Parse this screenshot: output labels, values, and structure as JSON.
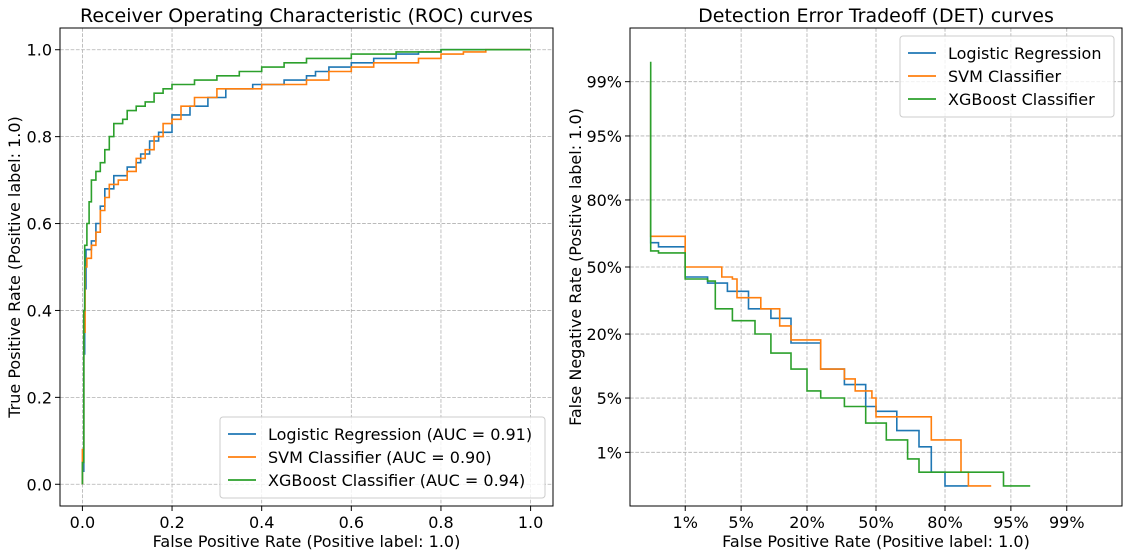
{
  "chart_data": [
    {
      "type": "line",
      "title": "Receiver Operating Characteristic (ROC) curves",
      "xlabel": "False Positive Rate (Positive label: 1.0)",
      "ylabel": "True Positive Rate (Positive label: 1.0)",
      "xlim": [
        -0.05,
        1.05
      ],
      "ylim": [
        -0.05,
        1.05
      ],
      "xticks": [
        0.0,
        0.2,
        0.4,
        0.6,
        0.8,
        1.0
      ],
      "yticks": [
        0.0,
        0.2,
        0.4,
        0.6,
        0.8,
        1.0
      ],
      "xtick_labels": [
        "0.0",
        "0.2",
        "0.4",
        "0.6",
        "0.8",
        "1.0"
      ],
      "ytick_labels": [
        "0.0",
        "0.2",
        "0.4",
        "0.6",
        "0.8",
        "1.0"
      ],
      "grid": true,
      "legend_position": "lower-right",
      "series": [
        {
          "name": "Logistic Regression (AUC = 0.91)",
          "color": "#1f77b4",
          "points": [
            [
              0,
              0
            ],
            [
              0,
              0.03
            ],
            [
              0.003,
              0.3
            ],
            [
              0.005,
              0.45
            ],
            [
              0.008,
              0.54
            ],
            [
              0.02,
              0.56
            ],
            [
              0.03,
              0.6
            ],
            [
              0.04,
              0.64
            ],
            [
              0.05,
              0.68
            ],
            [
              0.07,
              0.71
            ],
            [
              0.1,
              0.73
            ],
            [
              0.12,
              0.74
            ],
            [
              0.13,
              0.76
            ],
            [
              0.15,
              0.79
            ],
            [
              0.17,
              0.81
            ],
            [
              0.2,
              0.85
            ],
            [
              0.24,
              0.87
            ],
            [
              0.28,
              0.89
            ],
            [
              0.32,
              0.91
            ],
            [
              0.38,
              0.92
            ],
            [
              0.4,
              0.92
            ],
            [
              0.45,
              0.93
            ],
            [
              0.5,
              0.94
            ],
            [
              0.52,
              0.95
            ],
            [
              0.55,
              0.96
            ],
            [
              0.6,
              0.97
            ],
            [
              0.65,
              0.98
            ],
            [
              0.7,
              0.99
            ],
            [
              0.75,
              0.995
            ],
            [
              0.8,
              1.0
            ],
            [
              1.0,
              1.0
            ]
          ]
        },
        {
          "name": "SVM Classifier (AUC = 0.90)",
          "color": "#ff7f0e",
          "points": [
            [
              0,
              0
            ],
            [
              0,
              0.08
            ],
            [
              0.003,
              0.35
            ],
            [
              0.006,
              0.5
            ],
            [
              0.01,
              0.52
            ],
            [
              0.02,
              0.55
            ],
            [
              0.03,
              0.58
            ],
            [
              0.04,
              0.63
            ],
            [
              0.05,
              0.66
            ],
            [
              0.06,
              0.69
            ],
            [
              0.08,
              0.7
            ],
            [
              0.1,
              0.72
            ],
            [
              0.12,
              0.75
            ],
            [
              0.14,
              0.77
            ],
            [
              0.16,
              0.8
            ],
            [
              0.18,
              0.83
            ],
            [
              0.2,
              0.84
            ],
            [
              0.22,
              0.87
            ],
            [
              0.25,
              0.89
            ],
            [
              0.3,
              0.91
            ],
            [
              0.35,
              0.91
            ],
            [
              0.4,
              0.92
            ],
            [
              0.45,
              0.92
            ],
            [
              0.5,
              0.93
            ],
            [
              0.55,
              0.95
            ],
            [
              0.6,
              0.96
            ],
            [
              0.65,
              0.97
            ],
            [
              0.7,
              0.97
            ],
            [
              0.75,
              0.98
            ],
            [
              0.8,
              0.99
            ],
            [
              0.85,
              0.995
            ],
            [
              0.9,
              1.0
            ],
            [
              1.0,
              1.0
            ]
          ]
        },
        {
          "name": "XGBoost Classifier (AUC = 0.94)",
          "color": "#2ca02c",
          "points": [
            [
              0,
              0
            ],
            [
              0,
              0.05
            ],
            [
              0.003,
              0.4
            ],
            [
              0.005,
              0.55
            ],
            [
              0.01,
              0.6
            ],
            [
              0.015,
              0.65
            ],
            [
              0.02,
              0.7
            ],
            [
              0.03,
              0.72
            ],
            [
              0.04,
              0.74
            ],
            [
              0.05,
              0.77
            ],
            [
              0.06,
              0.8
            ],
            [
              0.07,
              0.83
            ],
            [
              0.09,
              0.84
            ],
            [
              0.1,
              0.86
            ],
            [
              0.12,
              0.87
            ],
            [
              0.14,
              0.88
            ],
            [
              0.16,
              0.9
            ],
            [
              0.18,
              0.91
            ],
            [
              0.2,
              0.92
            ],
            [
              0.25,
              0.93
            ],
            [
              0.3,
              0.94
            ],
            [
              0.35,
              0.95
            ],
            [
              0.4,
              0.96
            ],
            [
              0.45,
              0.97
            ],
            [
              0.5,
              0.98
            ],
            [
              0.6,
              0.99
            ],
            [
              0.7,
              0.995
            ],
            [
              0.8,
              1.0
            ],
            [
              1.0,
              1.0
            ]
          ]
        }
      ]
    },
    {
      "type": "line",
      "title": "Detection Error Tradeoff (DET) curves",
      "xlabel": "False Positive Rate (Positive label: 1.0)",
      "ylabel": "False Negative Rate (Positive label: 1.0)",
      "scale": "normal-deviate",
      "xlim": [
        -3,
        3
      ],
      "ylim": [
        -3,
        3
      ],
      "xticks": [
        0.01,
        0.05,
        0.2,
        0.5,
        0.8,
        0.95,
        0.99
      ],
      "yticks": [
        0.01,
        0.05,
        0.2,
        0.5,
        0.8,
        0.95,
        0.99
      ],
      "xtick_labels": [
        "1%",
        "5%",
        "20%",
        "50%",
        "80%",
        "95%",
        "99%"
      ],
      "ytick_labels": [
        "1%",
        "5%",
        "20%",
        "50%",
        "80%",
        "95%",
        "99%"
      ],
      "grid": true,
      "legend_position": "top-right",
      "series": [
        {
          "name": "Logistic Regression",
          "color": "#1f77b4",
          "points": [
            [
              0.003,
              0.99
            ],
            [
              0.003,
              0.62
            ],
            [
              0.004,
              0.6
            ],
            [
              0.01,
              0.58
            ],
            [
              0.01,
              0.45
            ],
            [
              0.02,
              0.42
            ],
            [
              0.035,
              0.38
            ],
            [
              0.06,
              0.3
            ],
            [
              0.1,
              0.26
            ],
            [
              0.15,
              0.17
            ],
            [
              0.25,
              0.1
            ],
            [
              0.35,
              0.07
            ],
            [
              0.45,
              0.04
            ],
            [
              0.5,
              0.035
            ],
            [
              0.6,
              0.02
            ],
            [
              0.7,
              0.012
            ],
            [
              0.75,
              0.005
            ],
            [
              0.8,
              0.003
            ],
            [
              0.87,
              0.003
            ]
          ]
        },
        {
          "name": "SVM Classifier",
          "color": "#ff7f0e",
          "points": [
            [
              0.003,
              0.99
            ],
            [
              0.003,
              0.65
            ],
            [
              0.01,
              0.65
            ],
            [
              0.01,
              0.5
            ],
            [
              0.03,
              0.45
            ],
            [
              0.04,
              0.44
            ],
            [
              0.045,
              0.35
            ],
            [
              0.08,
              0.3
            ],
            [
              0.12,
              0.23
            ],
            [
              0.15,
              0.18
            ],
            [
              0.25,
              0.1
            ],
            [
              0.35,
              0.08
            ],
            [
              0.4,
              0.06
            ],
            [
              0.48,
              0.05
            ],
            [
              0.5,
              0.03
            ],
            [
              0.65,
              0.03
            ],
            [
              0.75,
              0.015
            ],
            [
              0.85,
              0.005
            ],
            [
              0.87,
              0.003
            ],
            [
              0.92,
              0.003
            ]
          ]
        },
        {
          "name": "XGBoost Classifier",
          "color": "#2ca02c",
          "points": [
            [
              0.003,
              0.995
            ],
            [
              0.003,
              0.58
            ],
            [
              0.004,
              0.57
            ],
            [
              0.01,
              0.57
            ],
            [
              0.01,
              0.44
            ],
            [
              0.02,
              0.43
            ],
            [
              0.025,
              0.3
            ],
            [
              0.04,
              0.25
            ],
            [
              0.07,
              0.2
            ],
            [
              0.1,
              0.14
            ],
            [
              0.15,
              0.1
            ],
            [
              0.2,
              0.06
            ],
            [
              0.25,
              0.05
            ],
            [
              0.35,
              0.04
            ],
            [
              0.45,
              0.025
            ],
            [
              0.55,
              0.015
            ],
            [
              0.65,
              0.008
            ],
            [
              0.7,
              0.005
            ],
            [
              0.94,
              0.005
            ],
            [
              0.94,
              0.003
            ],
            [
              0.97,
              0.003
            ]
          ]
        }
      ]
    }
  ]
}
